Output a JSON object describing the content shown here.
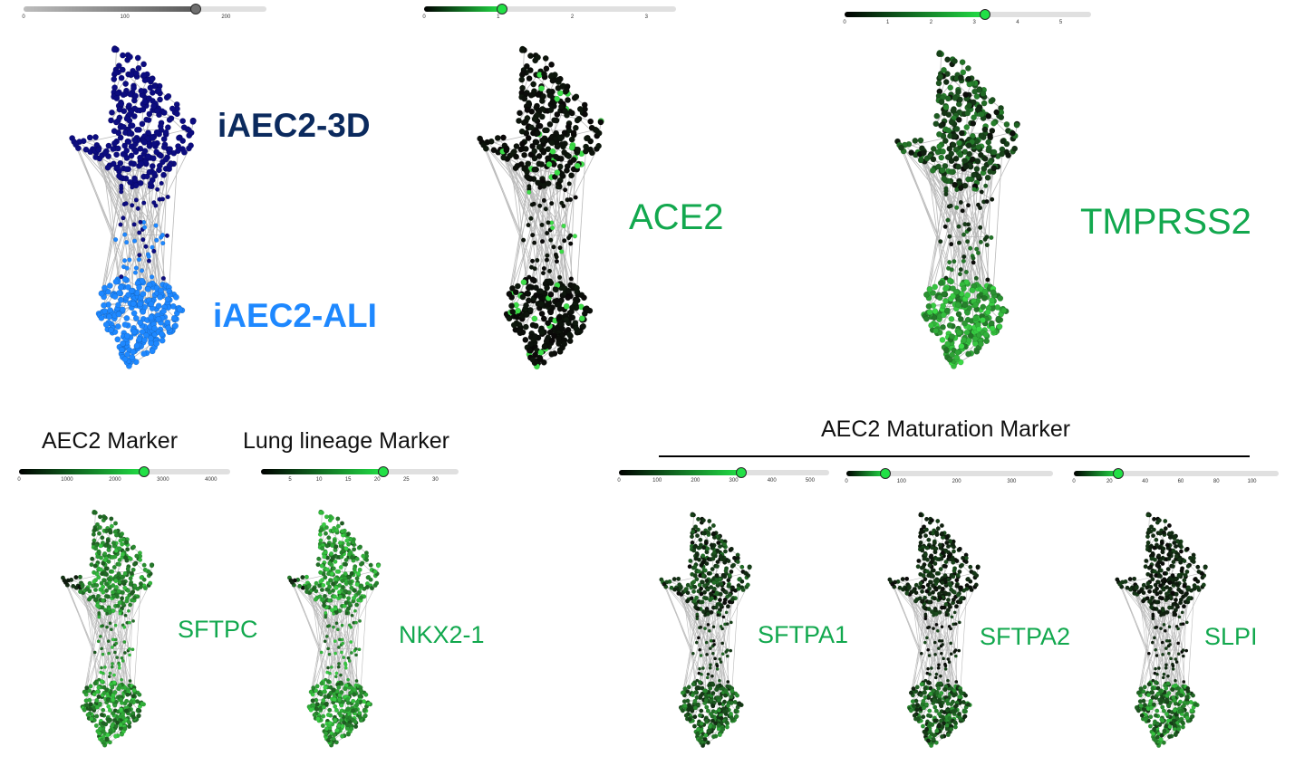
{
  "panels": [
    {
      "id": "cluster",
      "slider": {
        "min": 0,
        "max": 240,
        "value": 170,
        "ticks": [
          "0",
          "100",
          "200"
        ],
        "tick_values": [
          0,
          100,
          200
        ],
        "color": "#7a7a7a"
      },
      "palette": "cluster"
    },
    {
      "id": "ace2",
      "label": "ACE2",
      "slider": {
        "min": 0,
        "max": 3.4,
        "value": 1.05,
        "ticks": [
          "0",
          "1",
          "2",
          "3"
        ],
        "tick_values": [
          0,
          1,
          2,
          3
        ],
        "color": "#22e046"
      },
      "palette": "ace2"
    },
    {
      "id": "tmprss2",
      "label": "TMPRSS2",
      "slider": {
        "min": 0,
        "max": 5.7,
        "value": 3.25,
        "ticks": [
          "0",
          "1",
          "2",
          "3",
          "4",
          "5"
        ],
        "tick_values": [
          0,
          1,
          2,
          3,
          4,
          5
        ],
        "color": "#22e046"
      },
      "palette": "tmprss2"
    },
    {
      "id": "sftpc",
      "label": "SFTPC",
      "slider": {
        "min": 0,
        "max": 4400,
        "value": 2600,
        "ticks": [
          "0",
          "1000",
          "2000",
          "3000",
          "4000"
        ],
        "tick_values": [
          0,
          1000,
          2000,
          3000,
          4000
        ],
        "color": "#22e046"
      },
      "palette": "sftpc"
    },
    {
      "id": "nkx21",
      "label": "NKX2-1",
      "slider": {
        "min": 0,
        "max": 34,
        "value": 21,
        "ticks": [
          "5",
          "10",
          "15",
          "20",
          "25",
          "30"
        ],
        "tick_values": [
          5,
          10,
          15,
          20,
          25,
          30
        ],
        "color": "#22e046"
      },
      "palette": "nkx21"
    },
    {
      "id": "sftpa1",
      "label": "SFTPA1",
      "slider": {
        "min": 0,
        "max": 550,
        "value": 320,
        "ticks": [
          "0",
          "100",
          "200",
          "300",
          "400",
          "500"
        ],
        "tick_values": [
          0,
          100,
          200,
          300,
          400,
          500
        ],
        "color": "#22e046"
      },
      "palette": "sftpa1"
    },
    {
      "id": "sftpa2",
      "label": "SFTPA2",
      "slider": {
        "min": 0,
        "max": 375,
        "value": 70,
        "ticks": [
          "0",
          "100",
          "200",
          "300"
        ],
        "tick_values": [
          0,
          100,
          200,
          300
        ],
        "color": "#22e046"
      },
      "palette": "sftpa2"
    },
    {
      "id": "slpi",
      "label": "SLPI",
      "slider": {
        "min": 0,
        "max": 115,
        "value": 25,
        "ticks": [
          "0",
          "20",
          "40",
          "60",
          "80",
          "100"
        ],
        "tick_values": [
          0,
          20,
          40,
          60,
          80,
          100
        ],
        "color": "#22e046"
      },
      "palette": "slpi"
    }
  ],
  "clusters": {
    "top": {
      "label": "iAEC2-3D",
      "color": "#0c0c80",
      "text_color": "#0b2a5e"
    },
    "bottom": {
      "label": "iAEC2-ALI",
      "color": "#1e88ff",
      "text_color": "#1e88ff"
    }
  },
  "headers": {
    "aec2": "AEC2 Marker",
    "lung": "Lung lineage Marker",
    "maturation": "AEC2 Maturation Marker"
  }
}
